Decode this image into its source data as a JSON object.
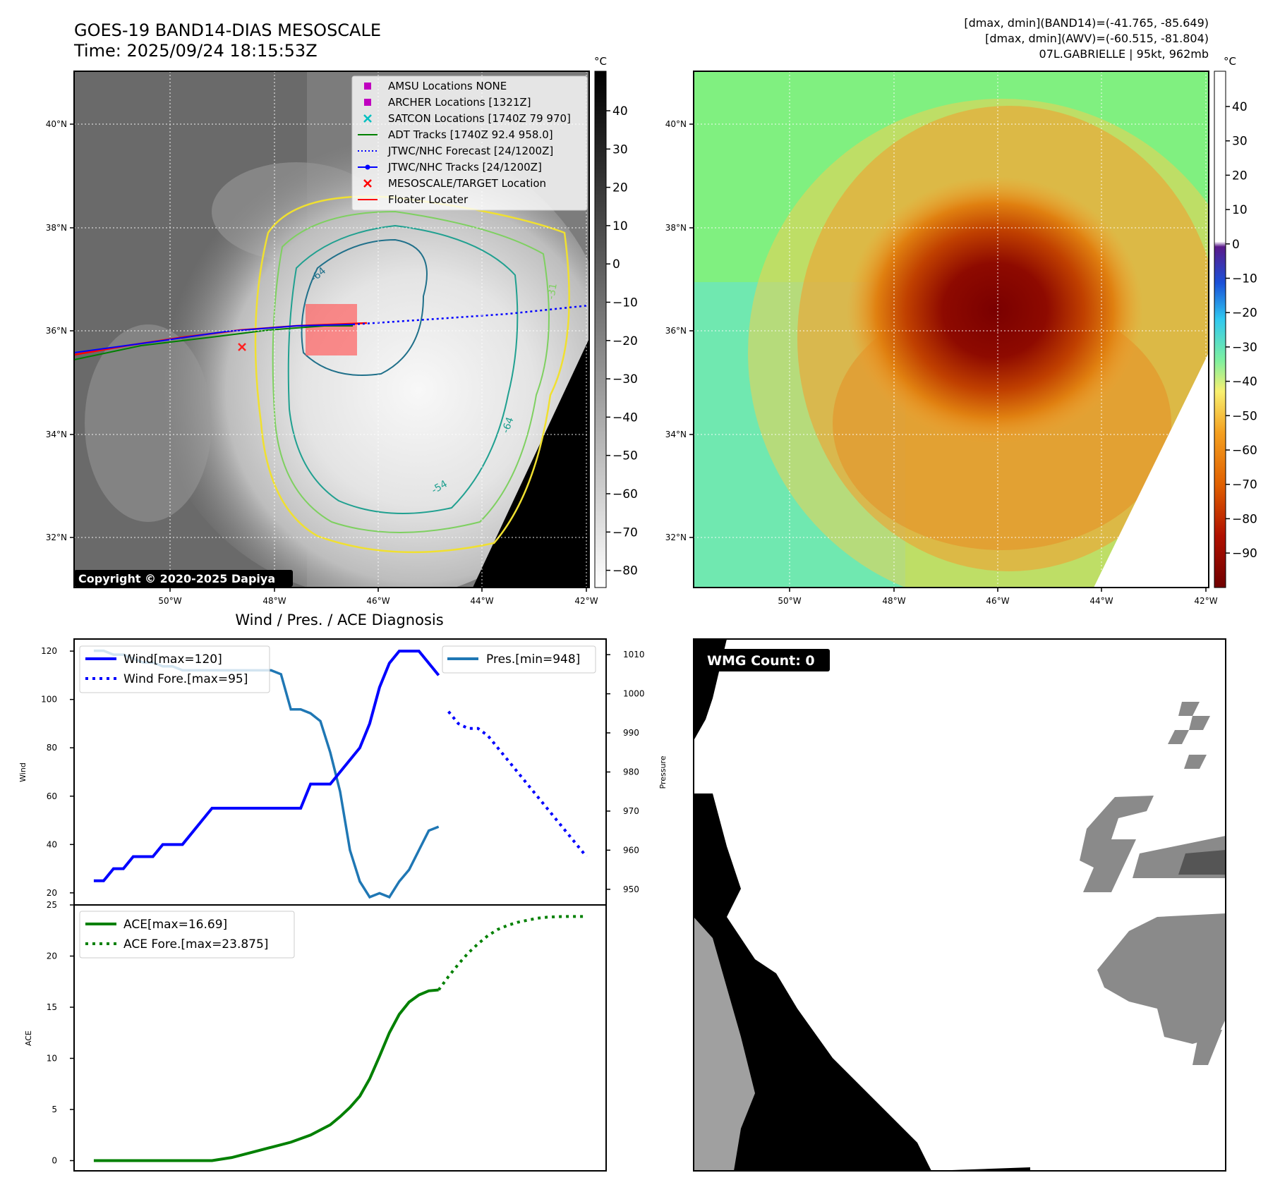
{
  "header": {
    "title_line1": "GOES-19 BAND14-DIAS MESOSCALE",
    "title_line2": "Time: 2025/09/24 18:15:53Z",
    "stats_line1": "[dmax, dmin](BAND14)=(-41.765, -85.649)",
    "stats_line2": "[dmax, dmin](AWV)=(-60.515, -81.804)",
    "stats_line3": "07L.GABRIELLE | 95kt, 962mb"
  },
  "map": {
    "lon_ticks": [
      "50°W",
      "48°W",
      "46°W",
      "44°W",
      "42°W"
    ],
    "lat_ticks": [
      "40°N",
      "38°N",
      "36°N",
      "34°N",
      "32°N"
    ],
    "copyright": "Copyright © 2020-2025 Dapiya",
    "contour_labels": [
      "-64",
      "-54",
      "-64",
      "-31"
    ],
    "legend": [
      {
        "label": "AMSU Locations NONE",
        "color": "#c000c0",
        "marker": "square"
      },
      {
        "label": "ARCHER Locations [1321Z]",
        "color": "#c000c0",
        "marker": "square"
      },
      {
        "label": "SATCON Locations [1740Z 79 970]",
        "color": "#00c0c0",
        "marker": "x"
      },
      {
        "label": "ADT Tracks [1740Z 92.4 958.0]",
        "color": "#008000",
        "marker": "line"
      },
      {
        "label": "JTWC/NHC Forecast [24/1200Z]",
        "color": "#0000ff",
        "marker": "dotted"
      },
      {
        "label": "JTWC/NHC Tracks [24/1200Z]",
        "color": "#0000ff",
        "marker": "line-dot"
      },
      {
        "label": "MESOSCALE/TARGET Location",
        "color": "#ff0000",
        "marker": "x"
      },
      {
        "label": "Floater Locater",
        "color": "#ff0000",
        "marker": "line"
      }
    ]
  },
  "colorbars": {
    "unit": "°C",
    "left_ticks": [
      "40",
      "30",
      "20",
      "10",
      "0",
      "−10",
      "−20",
      "−30",
      "−40",
      "−50",
      "−60",
      "−70",
      "−80"
    ],
    "right_ticks": [
      "40",
      "30",
      "20",
      "10",
      "0",
      "−10",
      "−20",
      "−30",
      "−40",
      "−50",
      "−60",
      "−70",
      "−80",
      "−90"
    ]
  },
  "colors": {
    "wind": "#0000ff",
    "pressure": "#1f77b4",
    "ace": "#008000"
  },
  "chart_data": [
    {
      "type": "line",
      "title": "Wind / Pres. / ACE Diagnosis",
      "ylabel": "Wind",
      "ylim": [
        15,
        125
      ],
      "yticks": [
        20,
        40,
        60,
        80,
        100,
        120
      ],
      "series": [
        {
          "name": "Wind[max=120]",
          "style": "solid",
          "x": [
            0,
            1,
            2,
            3,
            4,
            5,
            6,
            7,
            8,
            9,
            10,
            11,
            12,
            13,
            14,
            15,
            16,
            17,
            18,
            19,
            20,
            21,
            22,
            23,
            24,
            25,
            26,
            27,
            28,
            29,
            30,
            31,
            32,
            33,
            34,
            35
          ],
          "values": [
            25,
            25,
            30,
            30,
            35,
            35,
            35,
            40,
            40,
            40,
            45,
            50,
            55,
            55,
            55,
            55,
            55,
            55,
            55,
            55,
            55,
            55,
            65,
            65,
            65,
            70,
            75,
            80,
            90,
            105,
            115,
            120,
            120,
            120,
            115,
            110
          ]
        },
        {
          "name": "Wind Fore.[max=95]",
          "style": "dotted",
          "x": [
            36,
            37,
            38,
            39,
            40,
            41,
            42,
            43,
            44,
            45,
            46,
            47,
            48,
            49,
            50
          ],
          "values": [
            95,
            90,
            88,
            88,
            85,
            80,
            75,
            70,
            65,
            60,
            55,
            50,
            45,
            40,
            35
          ]
        }
      ],
      "secondary": {
        "ylabel": "Pressure",
        "ylim": [
          946,
          1014
        ],
        "yticks": [
          950,
          960,
          970,
          980,
          990,
          1000,
          1010
        ],
        "series": [
          {
            "name": "Pres.[min=948]",
            "x": [
              0,
              1,
              2,
              3,
              4,
              5,
              6,
              7,
              8,
              9,
              10,
              11,
              12,
              13,
              14,
              15,
              16,
              17,
              18,
              19,
              20,
              21,
              22,
              23,
              24,
              25,
              26,
              27,
              28,
              29,
              30,
              31,
              32,
              33,
              34,
              35
            ],
            "values": [
              1011,
              1011,
              1010,
              1010,
              1009,
              1008,
              1008,
              1007,
              1007,
              1006,
              1006,
              1006,
              1006,
              1006,
              1006,
              1006,
              1006,
              1006,
              1006,
              1005,
              996,
              996,
              995,
              993,
              985,
              975,
              960,
              952,
              948,
              949,
              948,
              952,
              955,
              960,
              965,
              966
            ]
          }
        ]
      }
    },
    {
      "type": "line",
      "ylabel": "ACE",
      "ylim": [
        -1,
        25
      ],
      "yticks": [
        0,
        5,
        10,
        15,
        20,
        25
      ],
      "series": [
        {
          "name": "ACE[max=16.69]",
          "style": "solid",
          "x": [
            0,
            2,
            4,
            6,
            8,
            10,
            12,
            14,
            16,
            18,
            20,
            22,
            24,
            25,
            26,
            27,
            28,
            29,
            30,
            31,
            32,
            33,
            34,
            35
          ],
          "values": [
            0,
            0,
            0,
            0,
            0,
            0,
            0,
            0.3,
            0.8,
            1.3,
            1.8,
            2.5,
            3.5,
            4.3,
            5.2,
            6.3,
            8.0,
            10.2,
            12.5,
            14.3,
            15.5,
            16.2,
            16.6,
            16.69
          ]
        },
        {
          "name": "ACE Fore.[max=23.875]",
          "style": "dotted",
          "x": [
            35,
            36,
            37,
            38,
            39,
            40,
            41,
            42,
            43,
            44,
            45,
            46,
            47,
            48,
            49,
            50
          ],
          "values": [
            16.69,
            18.0,
            19.2,
            20.3,
            21.2,
            22.0,
            22.6,
            23.0,
            23.3,
            23.5,
            23.7,
            23.8,
            23.85,
            23.87,
            23.875,
            23.875
          ]
        }
      ]
    }
  ],
  "wmg": {
    "count_label": "WMG Count: 0"
  }
}
